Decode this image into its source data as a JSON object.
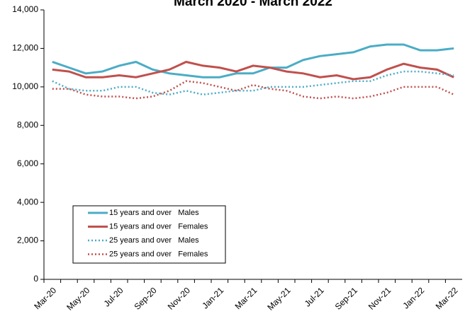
{
  "chart_data": {
    "type": "line",
    "title": "March 2020 - March 2022",
    "categories": [
      "Mar-20",
      null,
      "May-20",
      null,
      "Jul-20",
      null,
      "Sep-20",
      null,
      "Nov-20",
      null,
      "Jan-21",
      null,
      "Mar-21",
      null,
      "May-21",
      null,
      "Jul-21",
      null,
      "Sep-21",
      null,
      "Nov-21",
      null,
      "Jan-22",
      null,
      "Mar-22"
    ],
    "ylim": [
      0,
      14000
    ],
    "yticks": [
      {
        "value": 0,
        "label": "0"
      },
      {
        "value": 2000,
        "label": "2,000"
      },
      {
        "value": 4000,
        "label": "4,000"
      },
      {
        "value": 6000,
        "label": "6,000"
      },
      {
        "value": 8000,
        "label": "8,000"
      },
      {
        "value": 10000,
        "label": "10,000"
      },
      {
        "value": 12000,
        "label": "12,000"
      },
      {
        "value": 14000,
        "label": "14,000"
      }
    ],
    "series": [
      {
        "name": "15 years and over   Males",
        "color": "#4bacc6",
        "dash": "solid",
        "values": [
          11300,
          11000,
          10700,
          10800,
          11100,
          11300,
          10900,
          10700,
          10600,
          10500,
          10500,
          10700,
          10700,
          11000,
          11000,
          11400,
          11600,
          11700,
          11800,
          12100,
          12200,
          12200,
          11900,
          11900,
          12000
        ]
      },
      {
        "name": "15 years and over   Females",
        "color": "#c0504d",
        "dash": "solid",
        "values": [
          10900,
          10800,
          10500,
          10500,
          10600,
          10500,
          10700,
          10900,
          11300,
          11100,
          11000,
          10800,
          11100,
          11000,
          10800,
          10700,
          10500,
          10600,
          10400,
          10500,
          10900,
          11200,
          11000,
          10900,
          10500
        ]
      },
      {
        "name": "25 years and over   Males",
        "color": "#4bacc6",
        "dash": "dotted",
        "values": [
          10300,
          9900,
          9800,
          9800,
          10000,
          10000,
          9700,
          9600,
          9800,
          9600,
          9700,
          9800,
          9800,
          10000,
          10000,
          10000,
          10100,
          10200,
          10300,
          10300,
          10600,
          10800,
          10800,
          10700,
          10600
        ]
      },
      {
        "name": "25 years and over   Females",
        "color": "#c0504d",
        "dash": "dotted",
        "values": [
          9900,
          9900,
          9600,
          9500,
          9500,
          9400,
          9500,
          9800,
          10300,
          10200,
          10000,
          9800,
          10100,
          9900,
          9800,
          9500,
          9400,
          9500,
          9400,
          9500,
          9700,
          10000,
          10000,
          10000,
          9600
        ]
      }
    ]
  }
}
